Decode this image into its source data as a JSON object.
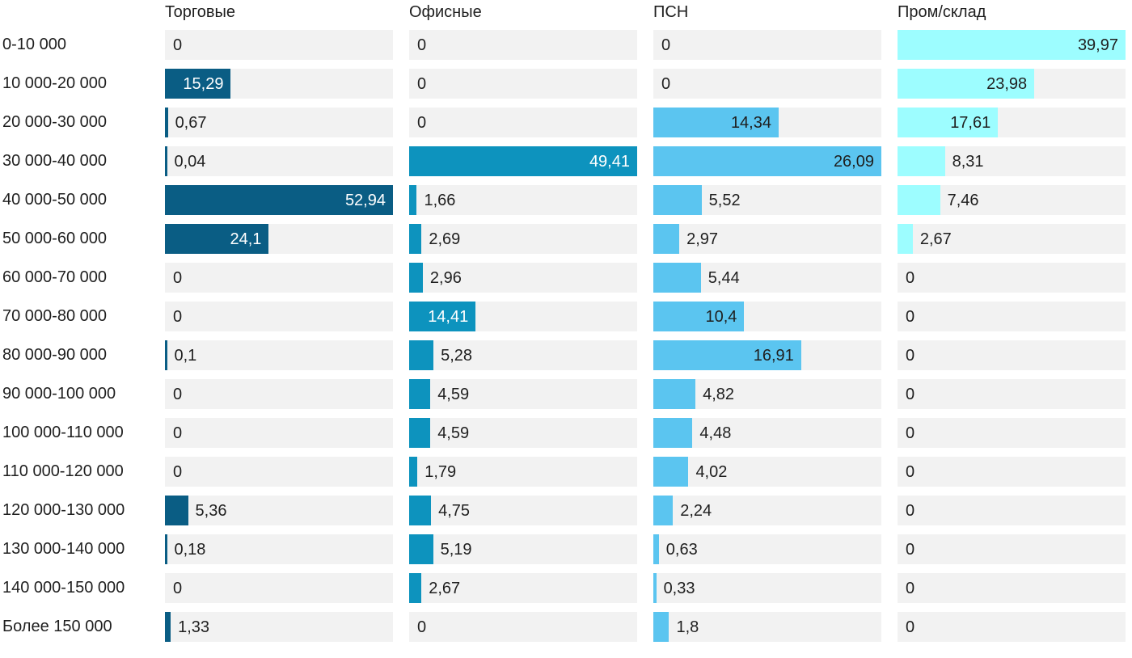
{
  "chart_data": {
    "type": "bar",
    "orientation": "horizontal",
    "value_format": "comma-decimal",
    "grid": false,
    "scaling": "per-column-max",
    "colors": {
      "track": "#f2f2f2",
      "text": "#1f1f1f"
    },
    "categories": [
      "0-10 000",
      "10 000-20 000",
      "20 000-30 000",
      "30 000-40 000",
      "40 000-50 000",
      "50 000-60 000",
      "60 000-70 000",
      "70 000-80 000",
      "80 000-90 000",
      "90 000-100 000",
      "100 000-110 000",
      "110 000-120 000",
      "120 000-130 000",
      "130 000-140 000",
      "140 000-150 000",
      "Более 150 000"
    ],
    "series": [
      {
        "name": "Торговые",
        "color": "#0a5d84",
        "inside_text_color": "#ffffff",
        "max": 52.94,
        "values": [
          0,
          15.29,
          0.67,
          0.04,
          52.94,
          24.1,
          0,
          0,
          0.1,
          0,
          0,
          0,
          5.36,
          0.18,
          0,
          1.33
        ],
        "labels": [
          "0",
          "15,29",
          "0,67",
          "0,04",
          "52,94",
          "24,1",
          "0",
          "0",
          "0,1",
          "0",
          "0",
          "0",
          "5,36",
          "0,18",
          "0",
          "1,33"
        ]
      },
      {
        "name": "Офисные",
        "color": "#0d93be",
        "inside_text_color": "#ffffff",
        "max": 49.41,
        "values": [
          0,
          0,
          0,
          49.41,
          1.66,
          2.69,
          2.96,
          14.41,
          5.28,
          4.59,
          4.59,
          1.79,
          4.75,
          5.19,
          2.67,
          0
        ],
        "labels": [
          "0",
          "0",
          "0",
          "49,41",
          "1,66",
          "2,69",
          "2,96",
          "14,41",
          "5,28",
          "4,59",
          "4,59",
          "1,79",
          "4,75",
          "5,19",
          "2,67",
          "0"
        ]
      },
      {
        "name": "ПСН",
        "color": "#5bc5f0",
        "inside_text_color": "#1f1f1f",
        "max": 26.09,
        "values": [
          0,
          0,
          14.34,
          26.09,
          5.52,
          2.97,
          5.44,
          10.4,
          16.91,
          4.82,
          4.48,
          4.02,
          2.24,
          0.63,
          0.33,
          1.8
        ],
        "labels": [
          "0",
          "0",
          "14,34",
          "26,09",
          "5,52",
          "2,97",
          "5,44",
          "10,4",
          "16,91",
          "4,82",
          "4,48",
          "4,02",
          "2,24",
          "0,63",
          "0,33",
          "1,8"
        ]
      },
      {
        "name": "Пром/склад",
        "color": "#9dfdff",
        "inside_text_color": "#1f1f1f",
        "max": 39.97,
        "values": [
          39.97,
          23.98,
          17.61,
          8.31,
          7.46,
          2.67,
          0,
          0,
          0,
          0,
          0,
          0,
          0,
          0,
          0,
          0
        ],
        "labels": [
          "39,97",
          "23,98",
          "17,61",
          "8,31",
          "7,46",
          "2,67",
          "0",
          "0",
          "0",
          "0",
          "0",
          "0",
          "0",
          "0",
          "0",
          "0"
        ]
      }
    ]
  }
}
